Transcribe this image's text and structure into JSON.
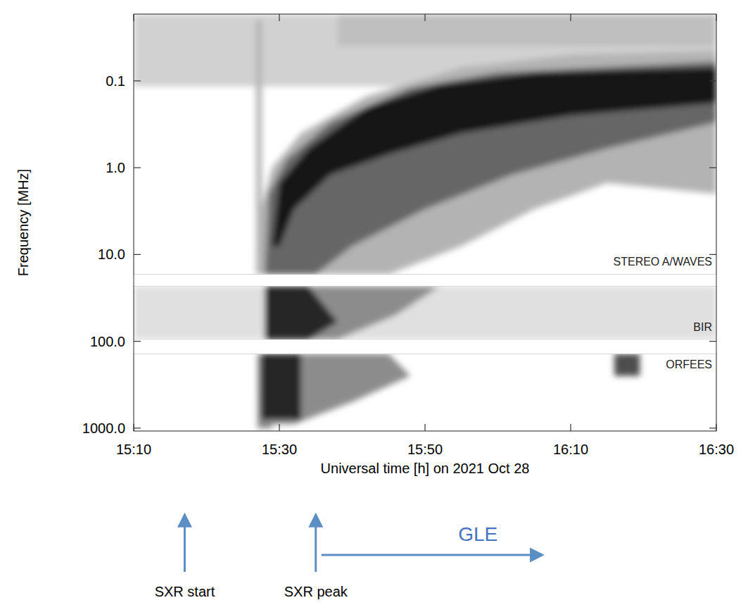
{
  "chart_data": {
    "type": "dynamic_spectrum",
    "x_label": "Universal time [h] on 2021 Oct 28",
    "y_label": "Frequency [MHz]",
    "log": "y",
    "xlim": [
      910,
      990
    ],
    "xticks": [
      {
        "value": 910,
        "label": "15:10"
      },
      {
        "value": 930,
        "label": "15:30"
      },
      {
        "value": 950,
        "label": "15:50"
      },
      {
        "value": 970,
        "label": "16:10"
      },
      {
        "value": 990,
        "label": "16:30"
      }
    ],
    "ylim": [
      0.017,
      1080
    ],
    "yticks": [
      0.1,
      {
        "value": 1,
        "label": "1.0"
      },
      {
        "value": 10,
        "label": "10.0"
      },
      {
        "value": 100,
        "label": "100.0"
      },
      {
        "value": 1000,
        "label": "1000.0"
      }
    ],
    "panels": [
      {
        "label": "STEREO A/WAVES",
        "flim": [
          0.017,
          16.9
        ],
        "features": [
          {
            "t": [
              910,
              990,
              990,
              910
            ],
            "f": [
              0.017,
              0.017,
              0.116,
              0.116
            ],
            "level": 0.18
          },
          {
            "t": [
              938,
              990,
              990,
              938
            ],
            "f": [
              0.017,
              0.017,
              0.04,
              0.04
            ],
            "level": 0.25
          },
          {
            "t": [
              926.8,
              927.6,
              927.6,
              926.8
            ],
            "f": [
              0.02,
              0.02,
              16.9,
              16.9
            ],
            "level": 0.3
          },
          {
            "t": [
              927.5,
              927.5,
              929,
              933,
              942,
              955,
              970,
              990,
              990,
              975,
              965,
              955,
              945
            ],
            "f": [
              16.9,
              3,
              1,
              0.4,
              0.15,
              0.07,
              0.05,
              0.045,
              2,
              1.5,
              3,
              8,
              16.9
            ],
            "level": 0.3
          },
          {
            "t": [
              928,
              928.5,
              931,
              937,
              948,
              960,
              990,
              990,
              975,
              962,
              950,
              940,
              935
            ],
            "f": [
              16.9,
              2,
              0.8,
              0.3,
              0.12,
              0.08,
              0.06,
              0.3,
              0.6,
              1.2,
              3,
              8,
              16.9
            ],
            "level": 0.6
          },
          {
            "t": [
              929,
              930,
              934,
              942,
              952,
              965,
              990,
              990,
              970,
              955,
              945,
              937,
              932,
              930
            ],
            "f": [
              8,
              1.5,
              0.6,
              0.2,
              0.11,
              0.08,
              0.07,
              0.18,
              0.25,
              0.4,
              0.7,
              1.2,
              3,
              8
            ],
            "level": 0.9
          }
        ]
      },
      {
        "label": "BIR",
        "flim": [
          23.2,
          95
        ],
        "features": [
          {
            "t": [
              910,
              990,
              990,
              910
            ],
            "f": [
              23.2,
              23.2,
              95,
              95
            ],
            "level": 0.12
          },
          {
            "t": [
              928,
              952,
              946,
              938,
              928
            ],
            "f": [
              23.2,
              23.2,
              50,
              95,
              95
            ],
            "level": 0.45
          },
          {
            "t": [
              928,
              934,
              938,
              934,
              928
            ],
            "f": [
              23.2,
              23.2,
              60,
              95,
              95
            ],
            "level": 0.85
          }
        ]
      },
      {
        "label": "ORFEES",
        "flim": [
          140,
          1080
        ],
        "features": [
          {
            "t": [
              927,
              945,
              948,
              940,
              932,
              927
            ],
            "f": [
              140,
              140,
              250,
              500,
              900,
              900
            ],
            "level": 0.45
          },
          {
            "t": [
              927.5,
              933,
              933,
              927.5
            ],
            "f": [
              140,
              140,
              800,
              800
            ],
            "level": 0.85
          },
          {
            "t": [
              927,
              929,
              929,
              927
            ],
            "f": [
              900,
              900,
              1000,
              1000
            ],
            "level": 0.5
          },
          {
            "t": [
              976,
              979.5,
              979.5,
              976
            ],
            "f": [
              140,
              140,
              250,
              250
            ],
            "level": 0.7
          }
        ]
      }
    ],
    "annotations": [
      {
        "text": "SXR start",
        "x": 917
      },
      {
        "text": "SXR peak",
        "x": 935
      },
      {
        "text": "GLE",
        "x": 935,
        "x_end": 966
      }
    ]
  }
}
